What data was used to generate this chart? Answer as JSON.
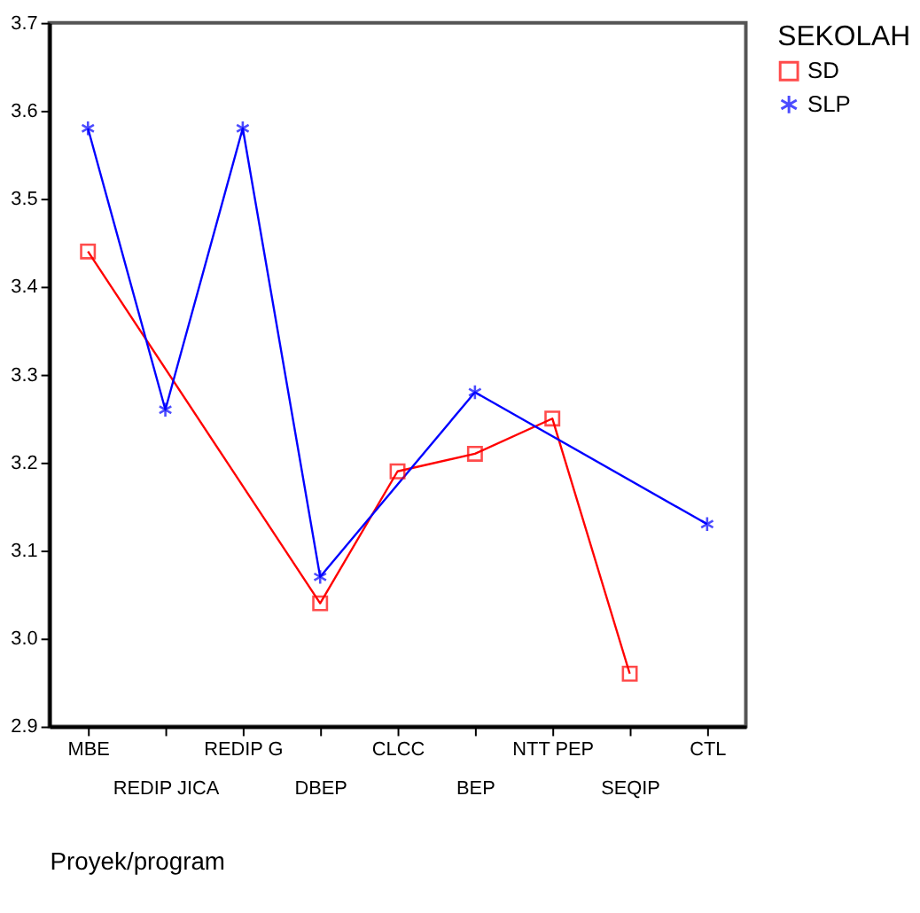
{
  "chart_data": {
    "type": "line",
    "xlabel": "Proyek/program",
    "legend_title": "SEKOLAH",
    "categories": [
      "MBE",
      "REDIP JICA",
      "REDIP G",
      "DBEP",
      "CLCC",
      "BEP",
      "NTT PEP",
      "SEQIP",
      "CTL"
    ],
    "series": [
      {
        "name": "SD",
        "color": "#ff0000",
        "marker": "square",
        "values": [
          3.44,
          null,
          null,
          3.04,
          3.19,
          3.21,
          3.25,
          2.96,
          null
        ]
      },
      {
        "name": "SLP",
        "color": "#0000ff",
        "marker": "cross",
        "values": [
          3.58,
          3.26,
          3.58,
          3.07,
          null,
          3.28,
          null,
          null,
          3.13
        ]
      }
    ],
    "ylim": [
      2.9,
      3.7
    ],
    "yticks": [
      2.9,
      {
        "value": 3.0,
        "label": "3.0"
      },
      3.1,
      3.2,
      3.3,
      3.4,
      3.5,
      3.6,
      3.7
    ],
    "grid": false,
    "legend": "right"
  }
}
